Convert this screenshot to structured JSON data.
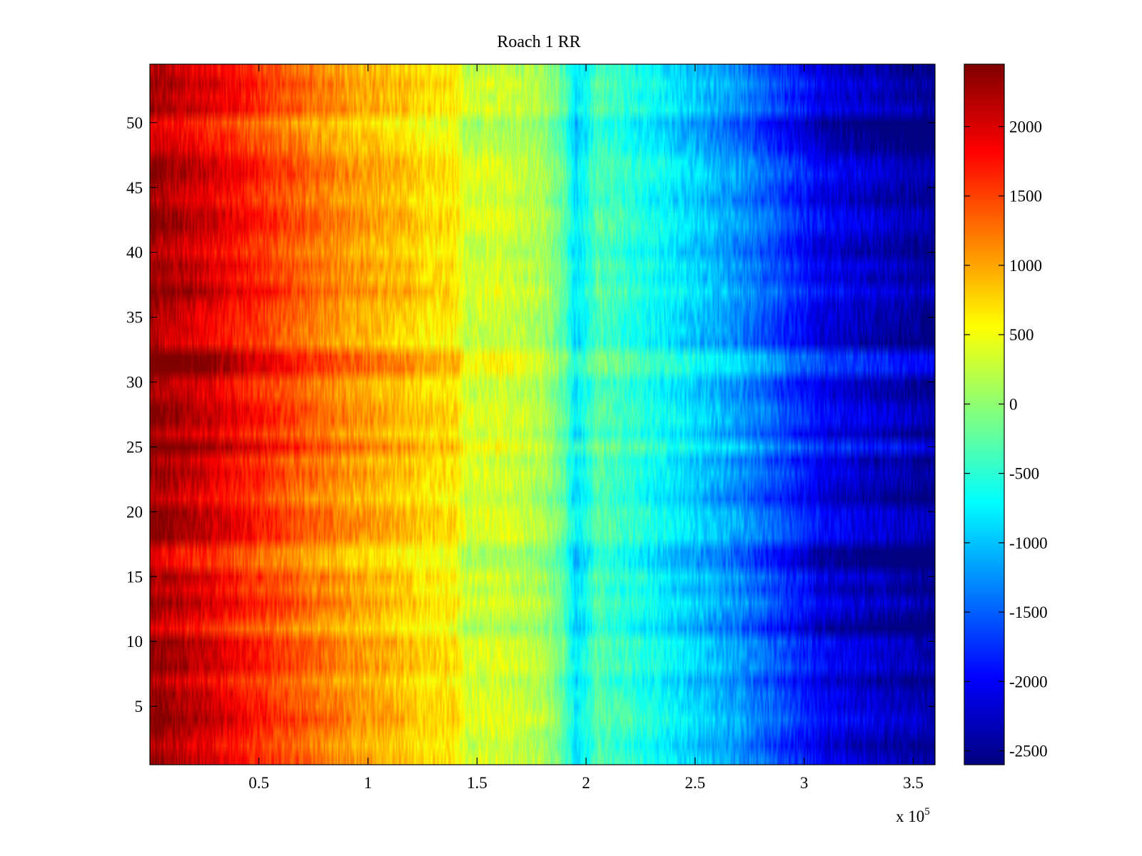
{
  "chart_data": {
    "type": "heatmap",
    "title": "Roach 1 RR",
    "xlabel": "",
    "ylabel": "",
    "x_exponent_label": {
      "base": "x 10",
      "exponent": "5"
    },
    "xlim": [
      0,
      3.6
    ],
    "ylim": [
      0.5,
      54.5
    ],
    "x_ticks": [
      0.5,
      1,
      1.5,
      2,
      2.5,
      3,
      3.5
    ],
    "x_tick_labels": [
      "0.5",
      "1",
      "1.5",
      "2",
      "2.5",
      "3",
      "3.5"
    ],
    "y_ticks": [
      5,
      10,
      15,
      20,
      25,
      30,
      35,
      40,
      45,
      50
    ],
    "y_tick_labels": [
      "5",
      "10",
      "15",
      "20",
      "25",
      "30",
      "35",
      "40",
      "45",
      "50"
    ],
    "rows": 54,
    "colormap": "jet",
    "colorbar": {
      "range": [
        -2600,
        2450
      ],
      "ticks": [
        2000,
        1500,
        1000,
        500,
        0,
        -500,
        -1000,
        -1500,
        -2000,
        -2500
      ],
      "tick_labels": [
        "2000",
        "1500",
        "1000",
        "500",
        "0",
        "-500",
        "-1000",
        "-1500",
        "-2000",
        "-2500"
      ],
      "placement": "right"
    },
    "column_profile": {
      "x": [
        0.0,
        0.3,
        0.6,
        0.9,
        1.2,
        1.25,
        1.4,
        1.45,
        1.6,
        1.8,
        1.9,
        1.95,
        2.0,
        2.05,
        2.3,
        2.7,
        3.1,
        3.6
      ],
      "value": [
        2300,
        1900,
        1450,
        1050,
        800,
        700,
        650,
        300,
        350,
        150,
        -250,
        -850,
        -650,
        -300,
        -650,
        -1250,
        -2100,
        -2500
      ]
    },
    "grid": false
  }
}
